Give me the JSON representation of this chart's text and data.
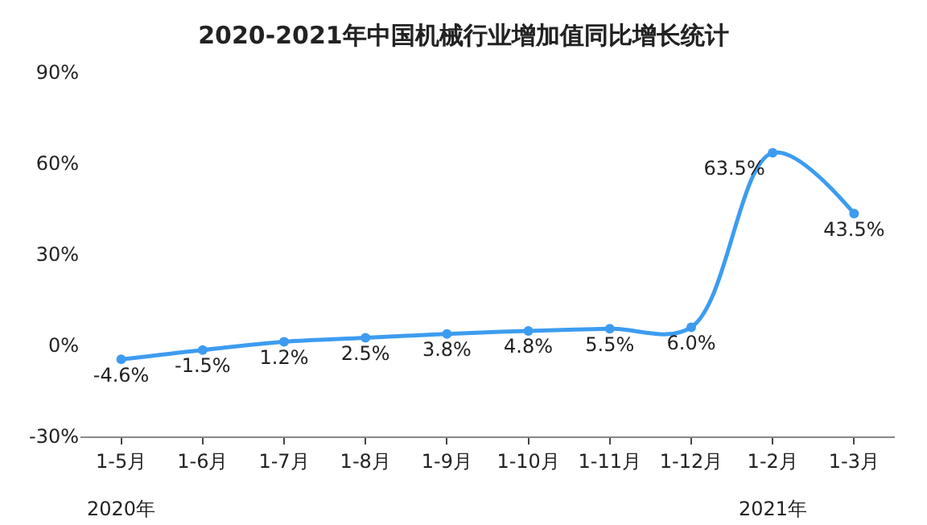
{
  "chart_data": {
    "type": "line",
    "title": "2020-2021年中国机械行业增加值同比增长统计",
    "categories": [
      "1-5月",
      "1-6月",
      "1-7月",
      "1-8月",
      "1-9月",
      "1-10月",
      "1-11月",
      "1-12月",
      "1-2月",
      "1-3月"
    ],
    "series": [
      {
        "color": "#3d9cf0",
        "values": [
          -4.6,
          -1.5,
          1.2,
          2.5,
          3.8,
          4.8,
          5.5,
          6.0,
          63.5,
          43.5
        ],
        "value_labels": [
          "-4.6%",
          "-1.5%",
          "1.2%",
          "2.5%",
          "3.8%",
          "4.8%",
          "5.5%",
          "6.0%",
          "63.5%",
          "43.5%"
        ]
      }
    ],
    "ylim": [
      -30,
      90
    ],
    "yticks": [
      {
        "value": -30,
        "label": "-30%"
      },
      {
        "value": 0,
        "label": "0%"
      },
      {
        "value": 30,
        "label": "30%"
      },
      {
        "value": 60,
        "label": "60%"
      },
      {
        "value": 90,
        "label": "90%"
      }
    ],
    "annotations": [
      "2020年",
      "2021年"
    ],
    "marker": "circle",
    "line_style": "solid",
    "legend": false
  }
}
